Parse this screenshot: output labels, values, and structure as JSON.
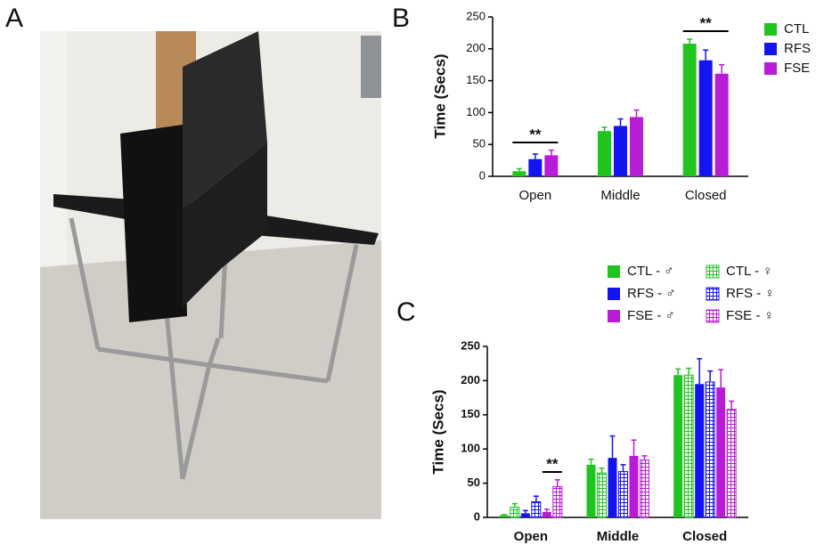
{
  "figure": {
    "photo_label": "A"
  },
  "chart_data": [
    {
      "type": "bar",
      "panel": "B",
      "ylabel": "Time (Secs)",
      "categories": [
        "Open",
        "Middle",
        "Closed"
      ],
      "series": [
        {
          "name": "CTL",
          "color": "#1fc41f",
          "values": [
            8,
            71,
            208
          ],
          "errors": [
            4,
            6,
            7
          ]
        },
        {
          "name": "RFS",
          "color": "#1414f0",
          "values": [
            27,
            79,
            182
          ],
          "errors": [
            8,
            11,
            16
          ]
        },
        {
          "name": "FSE",
          "color": "#b81cd6",
          "values": [
            33,
            93,
            161
          ],
          "errors": [
            8,
            11,
            14
          ]
        }
      ],
      "ylim": [
        0,
        250
      ],
      "yticks": [
        0,
        50,
        100,
        150,
        200,
        250
      ],
      "annotations": [
        "**",
        "**"
      ],
      "legend": "right"
    },
    {
      "type": "bar",
      "panel": "C",
      "ylabel": "Time (Secs)",
      "categories": [
        "Open",
        "Middle",
        "Closed"
      ],
      "series": [
        {
          "name": "CTL - ♂",
          "color": "#1fc41f",
          "hatched": false,
          "values": [
            3,
            77,
            208
          ],
          "errors": [
            1,
            8,
            9
          ]
        },
        {
          "name": "CTL - ♀",
          "color": "#1fc41f",
          "hatched": true,
          "values": [
            15,
            65,
            208
          ],
          "errors": [
            5,
            7,
            10
          ]
        },
        {
          "name": "RFS - ♂",
          "color": "#1414f0",
          "hatched": false,
          "values": [
            6,
            87,
            195
          ],
          "errors": [
            4,
            32,
            37
          ]
        },
        {
          "name": "RFS - ♀",
          "color": "#1414f0",
          "hatched": true,
          "values": [
            23,
            67,
            198
          ],
          "errors": [
            8,
            10,
            16
          ]
        },
        {
          "name": "FSE - ♂",
          "color": "#b81cd6",
          "hatched": false,
          "values": [
            8,
            90,
            190
          ],
          "errors": [
            4,
            23,
            26
          ]
        },
        {
          "name": "FSE - ♀",
          "color": "#b81cd6",
          "hatched": true,
          "values": [
            45,
            84,
            158
          ],
          "errors": [
            10,
            6,
            12
          ]
        }
      ],
      "ylim": [
        0,
        250
      ],
      "yticks": [
        0,
        50,
        100,
        150,
        200,
        250
      ],
      "annotations": [
        "**"
      ],
      "legend": "top"
    }
  ]
}
